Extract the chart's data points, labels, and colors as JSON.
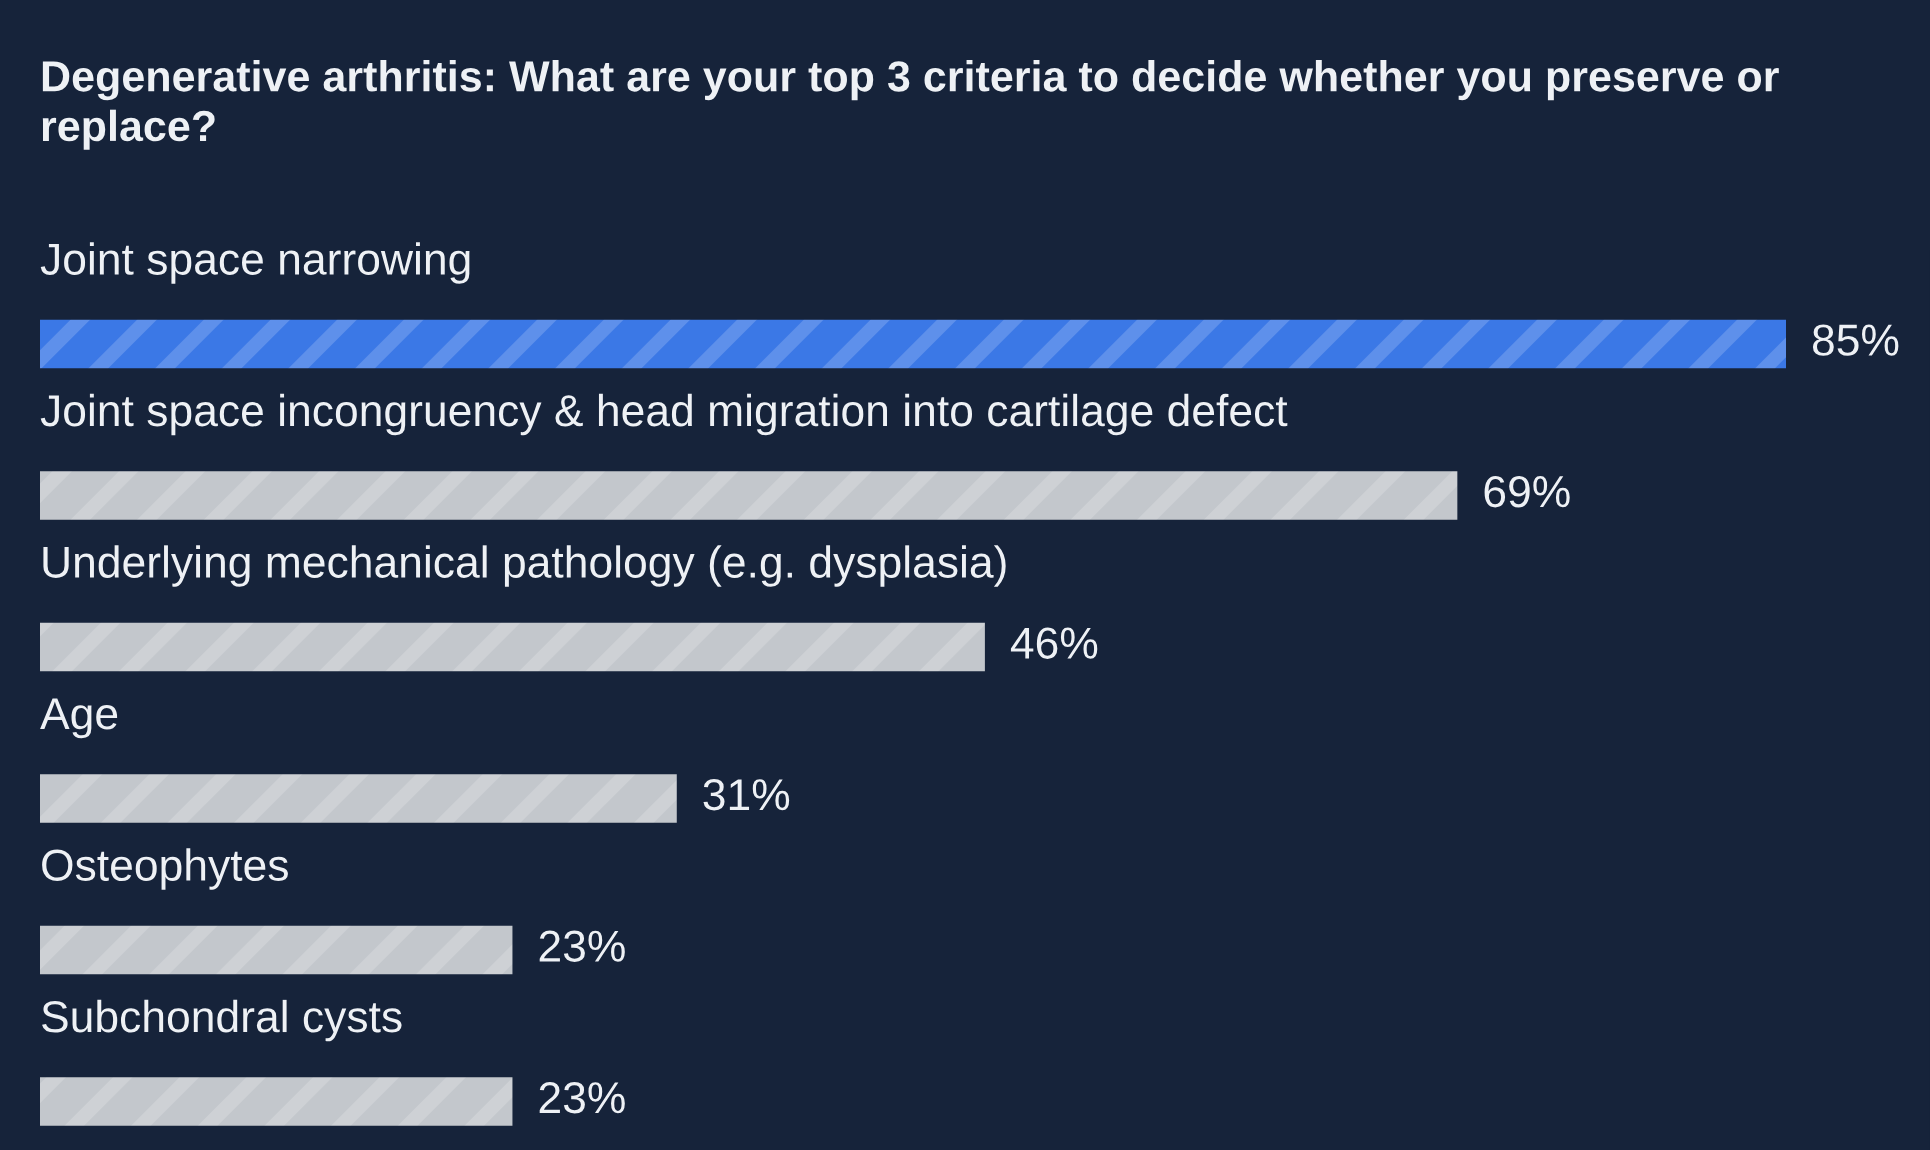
{
  "chart_data": {
    "type": "bar",
    "orientation": "horizontal",
    "title": "Degenerative arthritis: What are your top 3 criteria to decide whether you preserve or replace?",
    "categories": [
      "Joint space narrowing",
      "Joint space incongruency & head migration into cartilage defect",
      "Underlying mechanical pathology (e.g. dysplasia)",
      "Age",
      "Osteophytes",
      "Subchondral cysts"
    ],
    "values": [
      85,
      69,
      46,
      31,
      23,
      23
    ],
    "colors": [
      "#3b78e6",
      "#c3c7cc",
      "#c3c7cc",
      "#c3c7cc",
      "#c3c7cc",
      "#c3c7cc"
    ],
    "value_labels": [
      "85%",
      "69%",
      "46%",
      "31%",
      "23%",
      "23%"
    ]
  }
}
